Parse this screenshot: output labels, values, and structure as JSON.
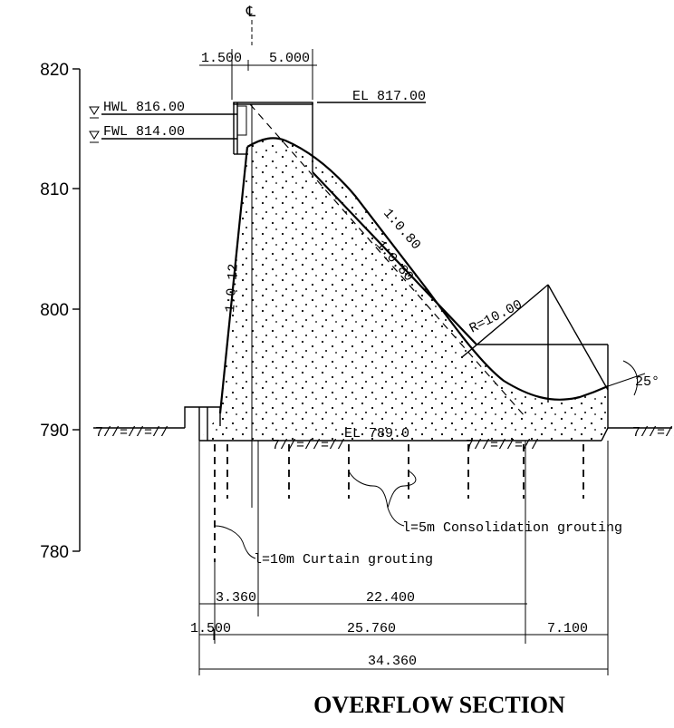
{
  "diagram": {
    "title": "OVERFLOW SECTION",
    "centerline_symbol": "℄",
    "elevation_scale": [
      "820",
      "810",
      "800",
      "790",
      "780"
    ],
    "water_levels": {
      "hwl": "HWL 816.00",
      "fwl": "FWL 814.00"
    },
    "crest": {
      "elevation": "EL 817.00",
      "width_left": "1.500",
      "width_right": "5.000"
    },
    "slopes": {
      "upstream": "1:0.12",
      "downstream_outer": "1:0.80",
      "downstream_inner": "1:0.80"
    },
    "bucket": {
      "radius": "R=10.00",
      "lip_angle": "25°"
    },
    "foundation": {
      "elevation": "EL 789.0",
      "ground_hatch": "7//=//=//"
    },
    "grouting": {
      "consolidation": "l=5m Consolidation grouting",
      "curtain": "l=10m Curtain grouting"
    },
    "dimensions": {
      "d_3360": "3.360",
      "d_22400": "22.400",
      "d_1500": "1.500",
      "d_25760": "25.760",
      "d_7100": "7.100",
      "d_34360": "34.360"
    }
  }
}
